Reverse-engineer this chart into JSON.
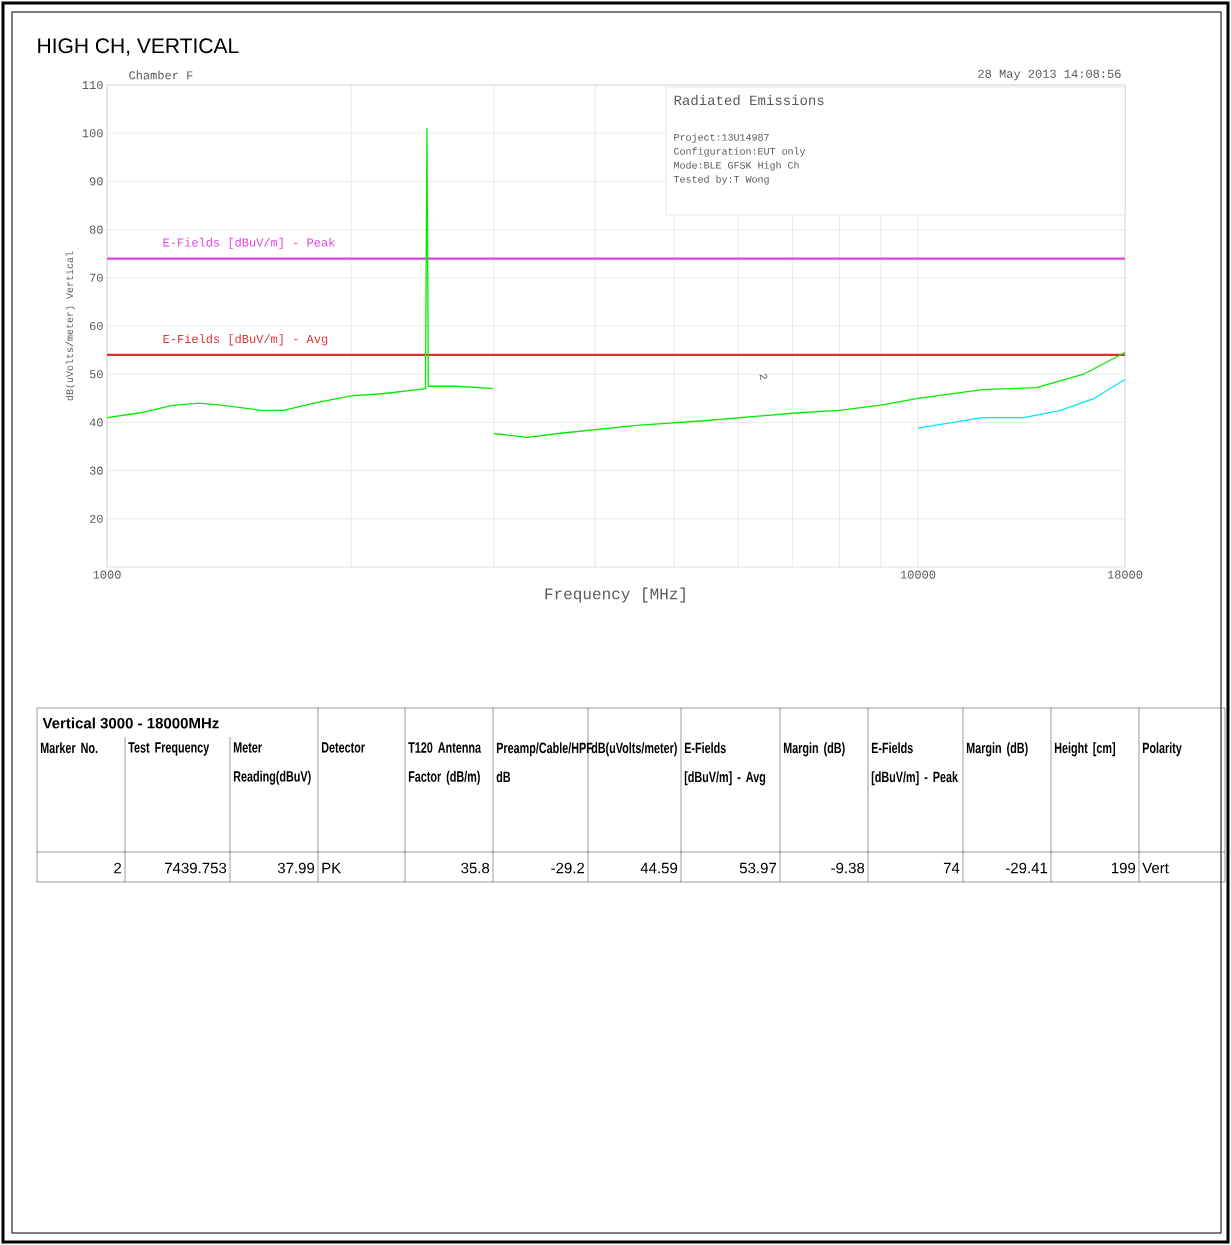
{
  "chart_data": {
    "type": "line",
    "title": "HIGH CH, VERTICAL",
    "xlabel": "Frequency [MHz]",
    "ylabel": "dB(uVolts/meter) Vertical",
    "log": "x",
    "grid": true,
    "xlim": [
      1000,
      18000
    ],
    "ylim": [
      10,
      110
    ],
    "xticks": [
      1000,
      {
        "value": 2000,
        "label": null
      },
      {
        "value": 3000,
        "label": null
      },
      {
        "value": 4000,
        "label": null
      },
      {
        "value": 5000,
        "label": null
      },
      {
        "value": 6000,
        "label": null
      },
      {
        "value": 7000,
        "label": null
      },
      {
        "value": 8000,
        "label": null
      },
      {
        "value": 9000,
        "label": null
      },
      10000,
      18000
    ],
    "yticks": [
      20,
      30,
      40,
      50,
      60,
      70,
      80,
      90,
      100,
      110
    ],
    "series": [
      {
        "color": "#00ee00",
        "x": [
          1000,
          1100,
          1200,
          1300,
          1400,
          1550,
          1650,
          1800,
          2000,
          2200,
          2470,
          2480,
          2490,
          2700,
          2990,
          2995,
          3000,
          3300,
          3600,
          4500,
          5500,
          7000,
          8000,
          9000,
          10000,
          12000,
          14000,
          16000,
          18000
        ],
        "values": [
          41,
          42,
          43.5,
          44,
          43.5,
          42.5,
          42.5,
          44,
          45.5,
          46,
          47,
          101,
          47.5,
          47.5,
          47,
          null,
          37.7,
          36.9,
          37.7,
          39.4,
          40.4,
          41.9,
          42.5,
          43.6,
          45,
          46.8,
          47.2,
          50,
          54.5
        ]
      },
      {
        "color": "#00e5ff",
        "x": [
          10000,
          12000,
          13500,
          15000,
          16500,
          18000
        ],
        "values": [
          38.8,
          41,
          41,
          42.5,
          45,
          48.9
        ]
      }
    ],
    "ref_lines": [
      {
        "axis": "y",
        "value": 74,
        "label": "E-Fields [dBuV/m] - Peak",
        "color": "#e040e0"
      },
      {
        "axis": "y",
        "value": 54,
        "label": "E-Fields [dBuV/m] - Avg",
        "color": "#e03030"
      }
    ],
    "annotations": [
      "Chamber F",
      "28 May 2013   14:08:56",
      "Radiated Emissions",
      "Project:13U14987",
      "Configuration:EUT only",
      "Mode:BLE GFSK High Ch",
      "Tested by:T Wong",
      "Vertical 3000 - 18000MHz",
      "Marker No.",
      "Test Frequency",
      "Meter Reading(dBuV)",
      "Detector",
      "T120 Antenna Factor (dB/m)",
      "Preamp/Cable/HPF dB",
      "dB(uVolts/meter)",
      "E-Fields [dBuV/m] - Avg",
      "Margin (dB)",
      "E-Fields [dBuV/m] - Peak",
      "Margin (dB)",
      "Height [cm]",
      "Polarity",
      "2",
      "7439.753",
      "37.99",
      "PK",
      "35.8",
      "-29.2",
      "44.59",
      "53.97",
      "-9.38",
      "74",
      "-29.41",
      "199",
      "Vert",
      "2"
    ]
  }
}
